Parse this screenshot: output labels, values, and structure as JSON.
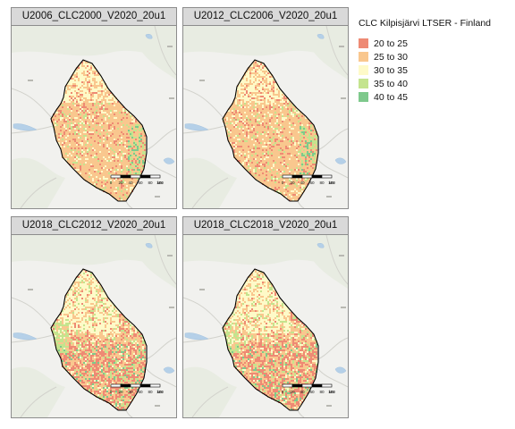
{
  "panels": [
    {
      "title": "U2006_CLC2000_V2020_20u1",
      "variant": "early"
    },
    {
      "title": "U2012_CLC2006_V2020_20u1",
      "variant": "early"
    },
    {
      "title": "U2018_CLC2012_V2020_20u1",
      "variant": "late"
    },
    {
      "title": "U2018_CLC2018_V2020_20u1",
      "variant": "late"
    }
  ],
  "legend": {
    "title": "CLC Kilpisjärvi LTSER - Finland",
    "items": [
      {
        "label": "20 to 25",
        "color": "#ee8a74"
      },
      {
        "label": "25 to 30",
        "color": "#f9c78e"
      },
      {
        "label": "30 to 35",
        "color": "#fefac8"
      },
      {
        "label": "35 to 40",
        "color": "#c4e48e"
      },
      {
        "label": "40 to 45",
        "color": "#7ec98c"
      }
    ]
  },
  "scalebar": {
    "ticks": [
      "0",
      "20",
      "40",
      "60",
      "80",
      "100"
    ],
    "unit": "km"
  }
}
